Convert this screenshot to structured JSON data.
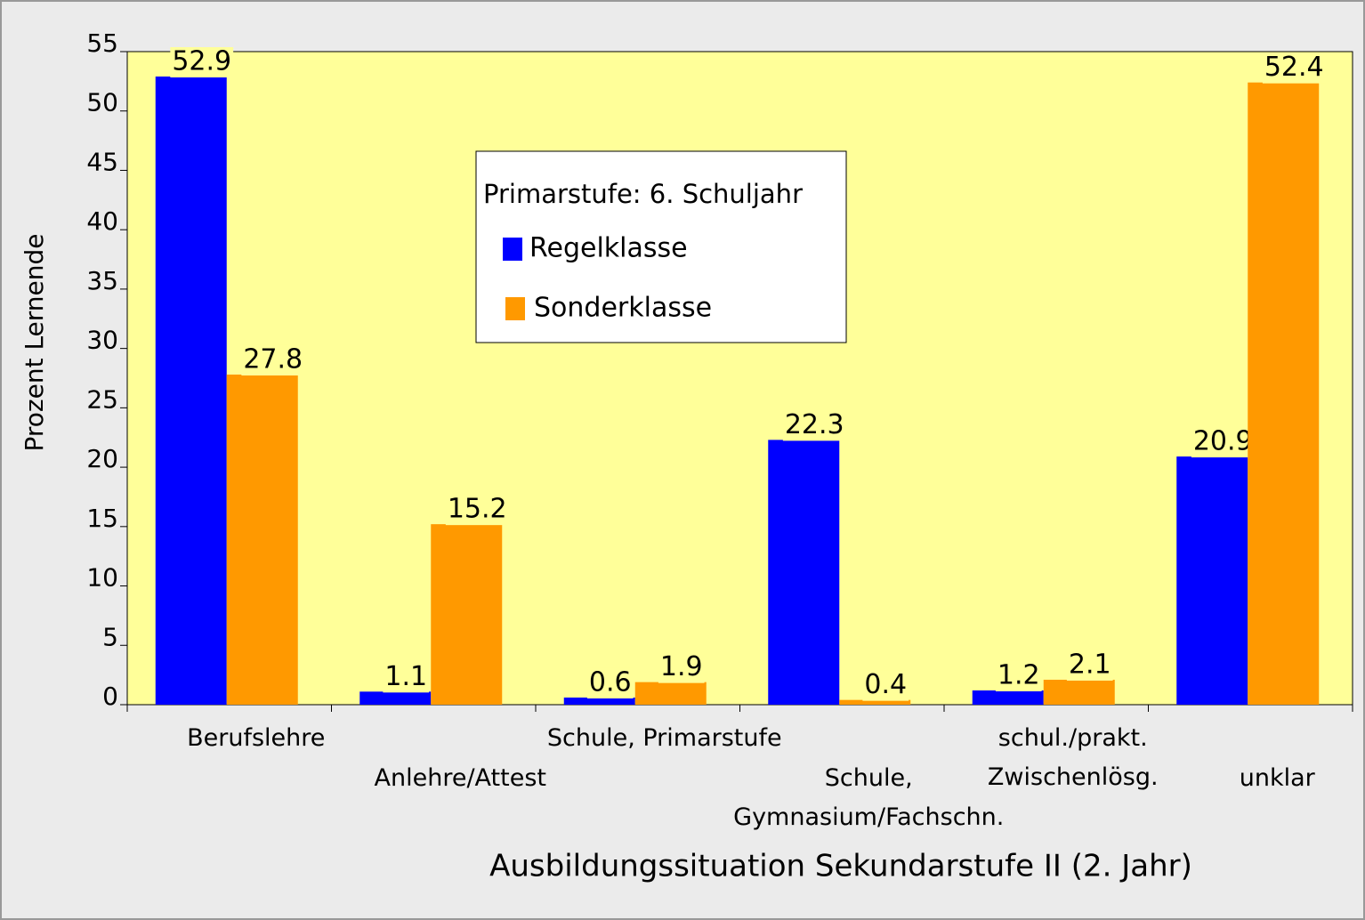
{
  "chart_data": {
    "type": "bar",
    "x_label": "Ausbildungssituation Sekundarstufe II (2. Jahr)",
    "y_label": "Prozent Lernende",
    "legend_title": "Primarstufe: 6. Schuljahr",
    "categories": [
      "Berufslehre",
      "Anlehre/Attest",
      "Schule, Primarstufe",
      "Schule,\nGymnasium/Fachschn.",
      "schul./prakt.\nZwischenlösg.",
      "unklar"
    ],
    "series": [
      {
        "name": "Regelklasse",
        "color": "#0000ff",
        "values": [
          52.9,
          1.1,
          0.6,
          22.3,
          1.2,
          20.9
        ]
      },
      {
        "name": "Sonderklasse",
        "color": "#ff9900",
        "values": [
          27.8,
          15.2,
          1.9,
          0.4,
          2.1,
          52.4
        ]
      }
    ],
    "ylim": [
      0,
      55
    ],
    "yticks": [
      0,
      5,
      10,
      15,
      20,
      25,
      30,
      35,
      40,
      45,
      50,
      55
    ],
    "plot_background": "#ffff99"
  }
}
